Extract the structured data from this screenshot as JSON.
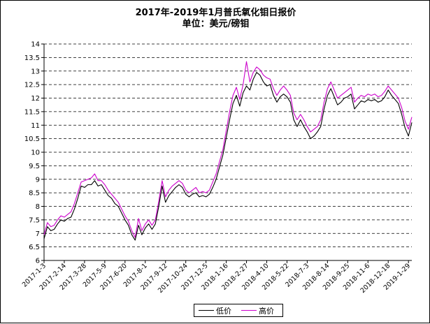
{
  "chart_data": {
    "type": "line",
    "title": "2017年-2019年1月普氏氧化钼日报价",
    "subtitle": "单位：美元/磅钼",
    "xlabel": "",
    "ylabel": "",
    "ylim": [
      6,
      14
    ],
    "yticks": [
      "6",
      "6.5",
      "7",
      "7.5",
      "8",
      "8.5",
      "9",
      "9.5",
      "10",
      "10.5",
      "11",
      "11.5",
      "12",
      "12.5",
      "13",
      "13.5",
      "14"
    ],
    "xtick_labels": [
      "2017-1-3",
      "2017-2-14",
      "2017-3-28",
      "2017-5-9",
      "2017-6-20",
      "2017-8-1",
      "2017-9-12",
      "2017-10-24",
      "2017-12-5",
      "2018-1-16",
      "2018-2-27",
      "2018-4-10",
      "2018-5-22",
      "2018-7-3",
      "2018-8-14",
      "2018-9-25",
      "2018-11-6",
      "2018-12-18",
      "2019-1-29"
    ],
    "grid": true,
    "grid_style": "dashed horizontal",
    "legend_position": "bottom-center",
    "series": [
      {
        "name": "低价",
        "color": "#000000",
        "points": [
          [
            "2017-1-3",
            6.8
          ],
          [
            "2017-1-10",
            7.25
          ],
          [
            "2017-1-17",
            7.1
          ],
          [
            "2017-1-24",
            7.15
          ],
          [
            "2017-1-31",
            7.35
          ],
          [
            "2017-2-7",
            7.5
          ],
          [
            "2017-2-14",
            7.45
          ],
          [
            "2017-2-21",
            7.55
          ],
          [
            "2017-2-28",
            7.6
          ],
          [
            "2017-3-7",
            7.9
          ],
          [
            "2017-3-14",
            8.3
          ],
          [
            "2017-3-21",
            8.75
          ],
          [
            "2017-3-28",
            8.7
          ],
          [
            "2017-4-4",
            8.8
          ],
          [
            "2017-4-11",
            8.8
          ],
          [
            "2017-4-18",
            8.95
          ],
          [
            "2017-4-25",
            8.75
          ],
          [
            "2017-5-2",
            8.8
          ],
          [
            "2017-5-9",
            8.6
          ],
          [
            "2017-5-16",
            8.4
          ],
          [
            "2017-5-23",
            8.3
          ],
          [
            "2017-5-30",
            8.1
          ],
          [
            "2017-6-6",
            8.0
          ],
          [
            "2017-6-13",
            7.75
          ],
          [
            "2017-6-20",
            7.5
          ],
          [
            "2017-6-27",
            7.3
          ],
          [
            "2017-7-4",
            6.95
          ],
          [
            "2017-7-11",
            6.75
          ],
          [
            "2017-7-18",
            7.3
          ],
          [
            "2017-7-25",
            6.95
          ],
          [
            "2017-8-1",
            7.2
          ],
          [
            "2017-8-8",
            7.35
          ],
          [
            "2017-8-15",
            7.15
          ],
          [
            "2017-8-22",
            7.35
          ],
          [
            "2017-8-29",
            8.0
          ],
          [
            "2017-9-5",
            8.75
          ],
          [
            "2017-9-12",
            8.15
          ],
          [
            "2017-9-19",
            8.4
          ],
          [
            "2017-9-26",
            8.55
          ],
          [
            "2017-10-3",
            8.7
          ],
          [
            "2017-10-10",
            8.8
          ],
          [
            "2017-10-17",
            8.7
          ],
          [
            "2017-10-24",
            8.45
          ],
          [
            "2017-10-31",
            8.35
          ],
          [
            "2017-11-7",
            8.45
          ],
          [
            "2017-11-14",
            8.5
          ],
          [
            "2017-11-21",
            8.35
          ],
          [
            "2017-11-28",
            8.4
          ],
          [
            "2017-12-5",
            8.35
          ],
          [
            "2017-12-12",
            8.45
          ],
          [
            "2017-12-19",
            8.7
          ],
          [
            "2017-12-26",
            9.0
          ],
          [
            "2018-1-2",
            9.45
          ],
          [
            "2018-1-9",
            9.9
          ],
          [
            "2018-1-16",
            10.55
          ],
          [
            "2018-1-23",
            11.2
          ],
          [
            "2018-1-30",
            11.8
          ],
          [
            "2018-2-6",
            12.1
          ],
          [
            "2018-2-13",
            11.7
          ],
          [
            "2018-2-20",
            12.2
          ],
          [
            "2018-2-27",
            12.45
          ],
          [
            "2018-3-6",
            12.3
          ],
          [
            "2018-3-13",
            12.7
          ],
          [
            "2018-3-20",
            12.95
          ],
          [
            "2018-3-27",
            12.85
          ],
          [
            "2018-4-3",
            12.6
          ],
          [
            "2018-4-10",
            12.45
          ],
          [
            "2018-4-17",
            12.5
          ],
          [
            "2018-4-24",
            12.1
          ],
          [
            "2018-5-1",
            11.85
          ],
          [
            "2018-5-8",
            12.05
          ],
          [
            "2018-5-15",
            12.15
          ],
          [
            "2018-5-22",
            12.05
          ],
          [
            "2018-5-29",
            11.85
          ],
          [
            "2018-6-5",
            11.2
          ],
          [
            "2018-6-12",
            10.95
          ],
          [
            "2018-6-19",
            11.2
          ],
          [
            "2018-6-26",
            10.95
          ],
          [
            "2018-7-3",
            10.75
          ],
          [
            "2018-7-10",
            10.5
          ],
          [
            "2018-7-17",
            10.6
          ],
          [
            "2018-7-24",
            10.75
          ],
          [
            "2018-7-31",
            10.95
          ],
          [
            "2018-8-7",
            11.6
          ],
          [
            "2018-8-14",
            12.1
          ],
          [
            "2018-8-21",
            12.35
          ],
          [
            "2018-8-28",
            12.05
          ],
          [
            "2018-9-4",
            11.75
          ],
          [
            "2018-9-11",
            11.85
          ],
          [
            "2018-9-18",
            12.0
          ],
          [
            "2018-9-25",
            12.05
          ],
          [
            "2018-10-2",
            12.15
          ],
          [
            "2018-10-9",
            11.6
          ],
          [
            "2018-10-16",
            11.75
          ],
          [
            "2018-10-23",
            11.9
          ],
          [
            "2018-10-30",
            11.85
          ],
          [
            "2018-11-6",
            11.95
          ],
          [
            "2018-11-13",
            11.9
          ],
          [
            "2018-11-20",
            11.95
          ],
          [
            "2018-11-27",
            11.85
          ],
          [
            "2018-12-4",
            11.9
          ],
          [
            "2018-12-11",
            12.05
          ],
          [
            "2018-12-18",
            12.3
          ],
          [
            "2018-12-25",
            12.1
          ],
          [
            "2019-1-1",
            11.95
          ],
          [
            "2019-1-8",
            11.8
          ],
          [
            "2019-1-15",
            11.4
          ],
          [
            "2019-1-22",
            10.9
          ],
          [
            "2019-1-29",
            10.6
          ],
          [
            "2019-2-5",
            11.1
          ]
        ]
      },
      {
        "name": "高价",
        "color": "#cc00cc",
        "points": [
          [
            "2017-1-3",
            6.95
          ],
          [
            "2017-1-10",
            7.4
          ],
          [
            "2017-1-17",
            7.25
          ],
          [
            "2017-1-24",
            7.3
          ],
          [
            "2017-1-31",
            7.5
          ],
          [
            "2017-2-7",
            7.65
          ],
          [
            "2017-2-14",
            7.6
          ],
          [
            "2017-2-21",
            7.7
          ],
          [
            "2017-2-28",
            7.8
          ],
          [
            "2017-3-7",
            8.1
          ],
          [
            "2017-3-14",
            8.5
          ],
          [
            "2017-3-21",
            8.9
          ],
          [
            "2017-3-28",
            8.95
          ],
          [
            "2017-4-4",
            9.0
          ],
          [
            "2017-4-11",
            9.05
          ],
          [
            "2017-4-18",
            9.2
          ],
          [
            "2017-4-25",
            8.95
          ],
          [
            "2017-5-2",
            8.95
          ],
          [
            "2017-5-9",
            8.8
          ],
          [
            "2017-5-16",
            8.6
          ],
          [
            "2017-5-23",
            8.45
          ],
          [
            "2017-5-30",
            8.3
          ],
          [
            "2017-6-6",
            8.15
          ],
          [
            "2017-6-13",
            7.9
          ],
          [
            "2017-6-20",
            7.65
          ],
          [
            "2017-6-27",
            7.45
          ],
          [
            "2017-7-4",
            7.1
          ],
          [
            "2017-7-11",
            6.85
          ],
          [
            "2017-7-18",
            7.55
          ],
          [
            "2017-7-25",
            7.1
          ],
          [
            "2017-8-1",
            7.35
          ],
          [
            "2017-8-8",
            7.5
          ],
          [
            "2017-8-15",
            7.3
          ],
          [
            "2017-8-22",
            7.5
          ],
          [
            "2017-8-29",
            8.2
          ],
          [
            "2017-9-5",
            8.95
          ],
          [
            "2017-9-12",
            8.35
          ],
          [
            "2017-9-19",
            8.6
          ],
          [
            "2017-9-26",
            8.75
          ],
          [
            "2017-10-3",
            8.85
          ],
          [
            "2017-10-10",
            8.95
          ],
          [
            "2017-10-17",
            8.85
          ],
          [
            "2017-10-24",
            8.6
          ],
          [
            "2017-10-31",
            8.5
          ],
          [
            "2017-11-7",
            8.6
          ],
          [
            "2017-11-14",
            8.7
          ],
          [
            "2017-11-21",
            8.5
          ],
          [
            "2017-11-28",
            8.55
          ],
          [
            "2017-12-5",
            8.5
          ],
          [
            "2017-12-12",
            8.6
          ],
          [
            "2017-12-19",
            8.9
          ],
          [
            "2017-12-26",
            9.2
          ],
          [
            "2018-1-2",
            9.65
          ],
          [
            "2018-1-9",
            10.1
          ],
          [
            "2018-1-16",
            10.8
          ],
          [
            "2018-1-23",
            11.5
          ],
          [
            "2018-1-30",
            12.1
          ],
          [
            "2018-2-6",
            12.4
          ],
          [
            "2018-2-13",
            11.95
          ],
          [
            "2018-2-20",
            12.5
          ],
          [
            "2018-2-27",
            13.35
          ],
          [
            "2018-3-6",
            12.6
          ],
          [
            "2018-3-13",
            12.95
          ],
          [
            "2018-3-20",
            13.15
          ],
          [
            "2018-3-27",
            13.05
          ],
          [
            "2018-4-3",
            12.85
          ],
          [
            "2018-4-10",
            12.75
          ],
          [
            "2018-4-17",
            12.7
          ],
          [
            "2018-4-24",
            12.35
          ],
          [
            "2018-5-1",
            12.1
          ],
          [
            "2018-5-8",
            12.3
          ],
          [
            "2018-5-15",
            12.45
          ],
          [
            "2018-5-22",
            12.3
          ],
          [
            "2018-5-29",
            12.1
          ],
          [
            "2018-6-5",
            11.45
          ],
          [
            "2018-6-12",
            11.2
          ],
          [
            "2018-6-19",
            11.4
          ],
          [
            "2018-6-26",
            11.2
          ],
          [
            "2018-7-3",
            10.95
          ],
          [
            "2018-7-10",
            10.75
          ],
          [
            "2018-7-17",
            10.85
          ],
          [
            "2018-7-24",
            10.95
          ],
          [
            "2018-7-31",
            11.2
          ],
          [
            "2018-8-7",
            11.85
          ],
          [
            "2018-8-14",
            12.35
          ],
          [
            "2018-8-21",
            12.6
          ],
          [
            "2018-8-28",
            12.3
          ],
          [
            "2018-9-4",
            12.0
          ],
          [
            "2018-9-11",
            12.1
          ],
          [
            "2018-9-18",
            12.2
          ],
          [
            "2018-9-25",
            12.3
          ],
          [
            "2018-10-2",
            12.4
          ],
          [
            "2018-10-9",
            11.85
          ],
          [
            "2018-10-16",
            12.0
          ],
          [
            "2018-10-23",
            12.1
          ],
          [
            "2018-10-30",
            12.05
          ],
          [
            "2018-11-6",
            12.15
          ],
          [
            "2018-11-13",
            12.1
          ],
          [
            "2018-11-20",
            12.15
          ],
          [
            "2018-11-27",
            12.05
          ],
          [
            "2018-12-4",
            12.1
          ],
          [
            "2018-12-11",
            12.25
          ],
          [
            "2018-12-18",
            12.45
          ],
          [
            "2018-12-25",
            12.3
          ],
          [
            "2019-1-1",
            12.15
          ],
          [
            "2019-1-8",
            12.0
          ],
          [
            "2019-1-15",
            11.65
          ],
          [
            "2019-1-22",
            11.15
          ],
          [
            "2019-1-29",
            10.85
          ],
          [
            "2019-2-5",
            11.3
          ]
        ]
      }
    ]
  }
}
